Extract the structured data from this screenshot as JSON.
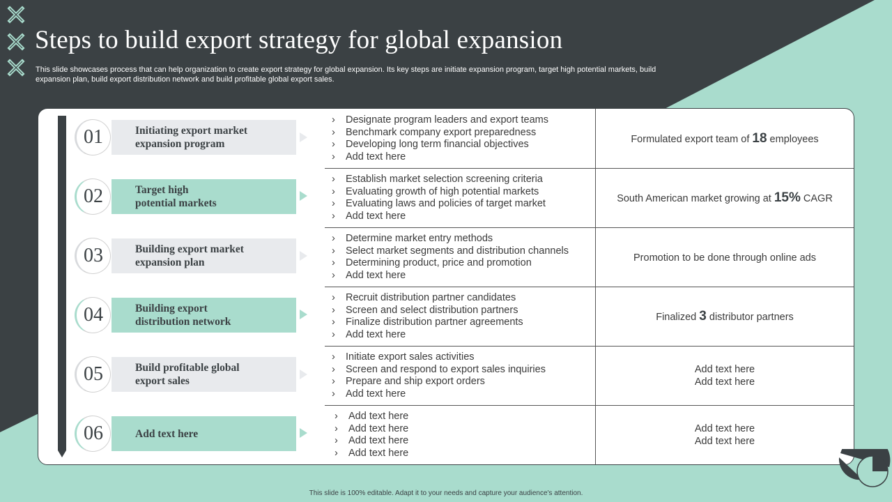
{
  "title": "Steps to build export strategy for global expansion",
  "subtitle": "This slide showcases process that can help organization to create export strategy for global expansion. Its key steps are initiate expansion program, target high potential markets, build expansion plan, build export distribution network and build profitable global export sales.",
  "colors": {
    "dark": "#3b4144",
    "accent": "#a9dccd",
    "light_gray": "#e8eaed"
  },
  "steps": [
    {
      "number": "01",
      "label": "Initiating export market\nexpansion program",
      "style": "gray",
      "bullets": [
        "Designate program leaders and export teams",
        "Benchmark company export preparedness",
        "Developing long term financial objectives",
        "Add text here"
      ],
      "result": {
        "prefix": "Formulated export team of ",
        "highlight": "18",
        "suffix": " employees",
        "lines": []
      }
    },
    {
      "number": "02",
      "label": "Target high\npotential markets",
      "style": "green",
      "bullets": [
        "Establish market selection screening criteria",
        "Evaluating growth of high potential markets",
        "Evaluating laws and policies of target market",
        "Add text here"
      ],
      "result": {
        "prefix": "South American market growing at ",
        "highlight": "15%",
        "suffix": " CAGR",
        "lines": []
      }
    },
    {
      "number": "03",
      "label": "Building export market\nexpansion plan",
      "style": "gray",
      "bullets": [
        "Determine market entry methods",
        "Select market segments and distribution channels",
        "Determining product, price and promotion",
        "Add text here"
      ],
      "result": {
        "prefix": "Promotion to be done through online ads",
        "highlight": "",
        "suffix": "",
        "lines": []
      }
    },
    {
      "number": "04",
      "label": "Building export\ndistribution network",
      "style": "green",
      "bullets": [
        "Recruit distribution partner candidates",
        "Screen and select distribution partners",
        "Finalize distribution partner agreements",
        "Add text here"
      ],
      "result": {
        "prefix": "Finalized ",
        "highlight": "3",
        "suffix": " distributor partners",
        "lines": []
      }
    },
    {
      "number": "05",
      "label": "Build profitable global\nexport sales",
      "style": "gray",
      "bullets": [
        "Initiate export sales activities",
        "Screen and respond to export sales inquiries",
        "Prepare and ship export orders",
        "Add text here"
      ],
      "result": {
        "prefix": "",
        "highlight": "",
        "suffix": "",
        "lines": [
          "Add text here",
          "Add text here"
        ]
      }
    },
    {
      "number": "06",
      "label": "Add text here",
      "style": "green",
      "bullets": [
        "Add text here",
        "Add text here",
        "Add text here",
        "Add text here"
      ],
      "result": {
        "prefix": "",
        "highlight": "",
        "suffix": "",
        "lines": [
          "Add text here",
          "Add text here"
        ]
      }
    }
  ],
  "footer": "This slide is 100% editable. Adapt it to your needs and capture your audience's attention.",
  "icons": {
    "logo": "x-cross-icon",
    "bullet": "chevron-right-icon",
    "decoration": "pie-segment-icon"
  }
}
